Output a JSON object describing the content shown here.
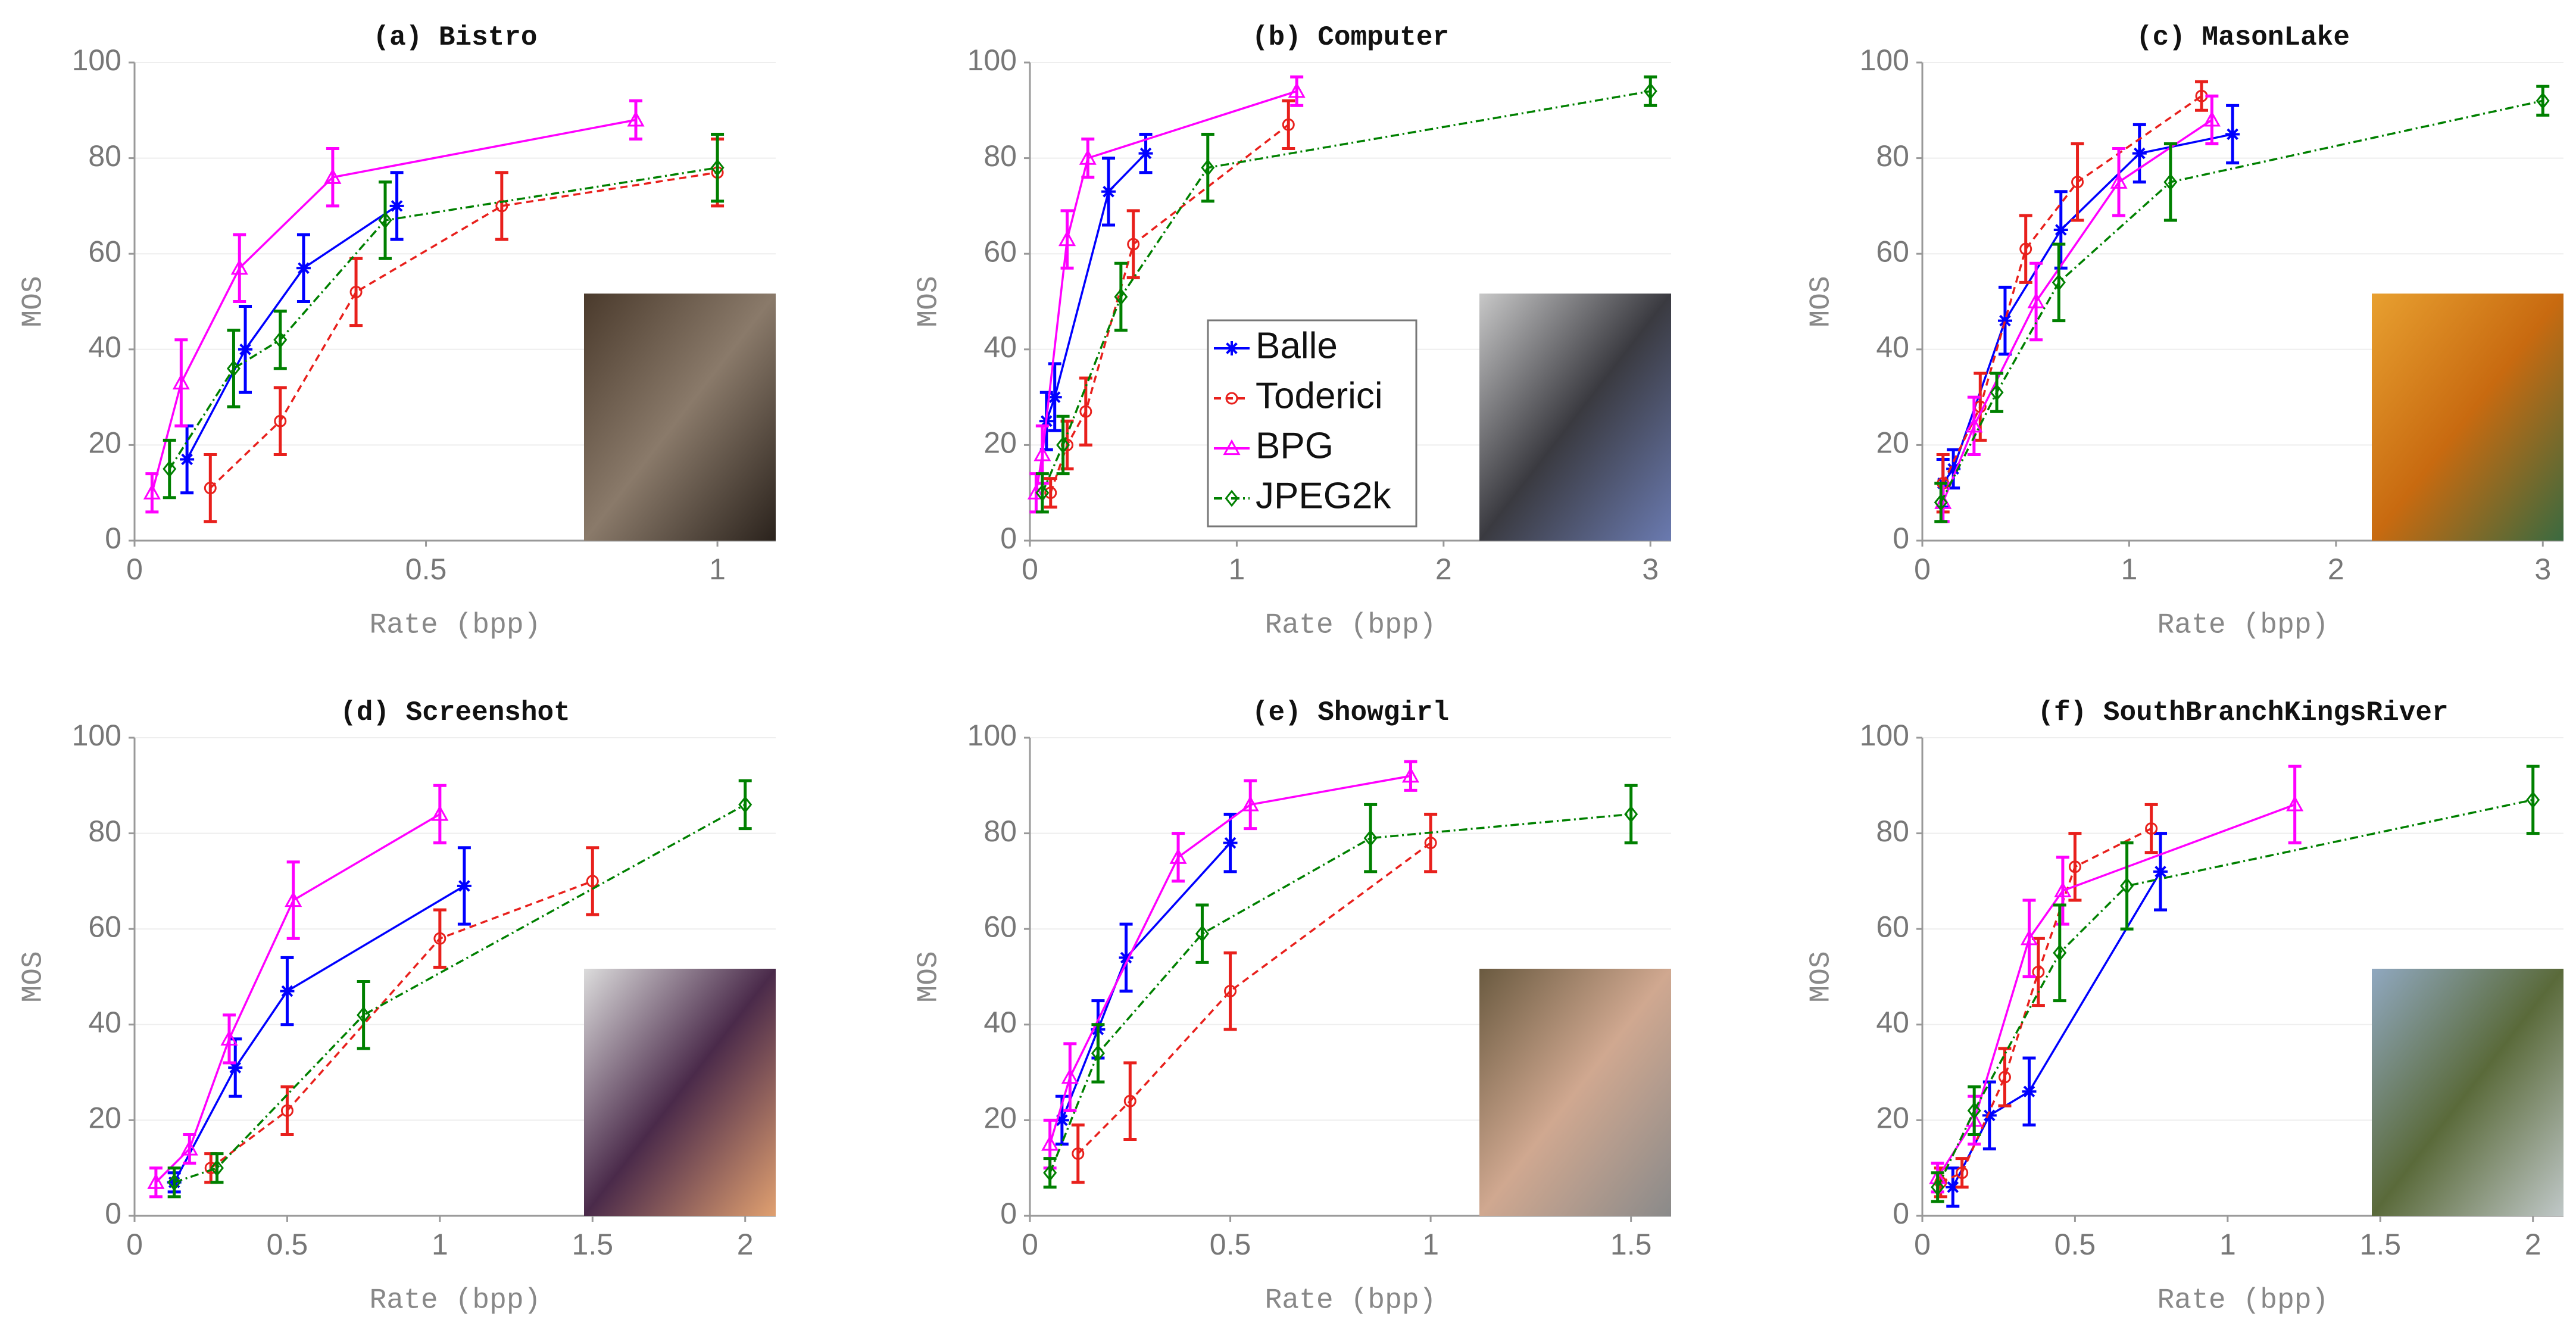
{
  "chart_data": [
    {
      "type": "line",
      "title": "(a) Bistro",
      "xlabel": "Rate (bpp)",
      "ylabel": "MOS",
      "xlim": [
        0,
        1.1
      ],
      "xticks": [
        0,
        0.5,
        1
      ],
      "ylim": [
        0,
        100
      ],
      "yticks": [
        0,
        20,
        40,
        60,
        80,
        100
      ],
      "grid": true,
      "series": [
        {
          "name": "Balle",
          "color": "#0000ff",
          "marker": "asterisk",
          "dash": "solid",
          "x": [
            0.09,
            0.19,
            0.29,
            0.45
          ],
          "values": [
            17,
            40,
            57,
            70
          ],
          "errors": [
            7,
            9,
            7,
            7
          ]
        },
        {
          "name": "Toderici",
          "color": "#e8201c",
          "marker": "circle",
          "dash": "dashed",
          "x": [
            0.13,
            0.25,
            0.38,
            0.63,
            1.0
          ],
          "values": [
            11,
            25,
            52,
            70,
            77
          ],
          "errors": [
            7,
            7,
            7,
            7,
            7
          ]
        },
        {
          "name": "BPG",
          "color": "#ff00ff",
          "marker": "triangle",
          "dash": "solid",
          "x": [
            0.03,
            0.08,
            0.18,
            0.34,
            0.86
          ],
          "values": [
            10,
            33,
            57,
            76,
            88
          ],
          "errors": [
            4,
            9,
            7,
            6,
            4
          ]
        },
        {
          "name": "JPEG2k",
          "color": "#008000",
          "marker": "diamond",
          "dash": "dashdot",
          "x": [
            0.06,
            0.17,
            0.25,
            0.43,
            1.0
          ],
          "values": [
            15,
            36,
            42,
            67,
            78
          ],
          "errors": [
            6,
            8,
            6,
            8,
            7
          ]
        }
      ]
    },
    {
      "type": "line",
      "title": "(b) Computer",
      "xlabel": "Rate (bpp)",
      "ylabel": "MOS",
      "xlim": [
        0,
        3.1
      ],
      "xticks": [
        0,
        1,
        2,
        3
      ],
      "ylim": [
        0,
        100
      ],
      "yticks": [
        0,
        20,
        40,
        60,
        80,
        100
      ],
      "grid": true,
      "legend": "center",
      "series": [
        {
          "name": "Balle",
          "color": "#0000ff",
          "marker": "asterisk",
          "dash": "solid",
          "x": [
            0.08,
            0.12,
            0.38,
            0.56
          ],
          "values": [
            25,
            30,
            73,
            81
          ],
          "errors": [
            6,
            7,
            7,
            4
          ]
        },
        {
          "name": "Toderici",
          "color": "#e8201c",
          "marker": "circle",
          "dash": "dashed",
          "x": [
            0.1,
            0.18,
            0.27,
            0.5,
            1.25
          ],
          "values": [
            10,
            20,
            27,
            62,
            87
          ],
          "errors": [
            3,
            5,
            7,
            7,
            5
          ]
        },
        {
          "name": "BPG",
          "color": "#ff00ff",
          "marker": "triangle",
          "dash": "solid",
          "x": [
            0.03,
            0.06,
            0.18,
            0.28,
            1.29
          ],
          "values": [
            10,
            18,
            63,
            80,
            94
          ],
          "errors": [
            4,
            6,
            6,
            4,
            3
          ]
        },
        {
          "name": "JPEG2k",
          "color": "#008000",
          "marker": "diamond",
          "dash": "dashdot",
          "x": [
            0.06,
            0.16,
            0.44,
            0.86,
            3.0
          ],
          "values": [
            10,
            20,
            51,
            78,
            94
          ],
          "errors": [
            4,
            6,
            7,
            7,
            3
          ]
        }
      ]
    },
    {
      "type": "line",
      "title": "(c) MasonLake",
      "xlabel": "Rate (bpp)",
      "ylabel": "MOS",
      "xlim": [
        0,
        3.1
      ],
      "xticks": [
        0,
        1,
        2,
        3
      ],
      "ylim": [
        0,
        100
      ],
      "yticks": [
        0,
        20,
        40,
        60,
        80,
        100
      ],
      "grid": true,
      "series": [
        {
          "name": "Balle",
          "color": "#0000ff",
          "marker": "asterisk",
          "dash": "solid",
          "x": [
            0.1,
            0.15,
            0.4,
            0.67,
            1.05,
            1.5
          ],
          "values": [
            12,
            15,
            46,
            65,
            81,
            85
          ],
          "errors": [
            5,
            4,
            7,
            8,
            6,
            6
          ]
        },
        {
          "name": "Toderici",
          "color": "#e8201c",
          "marker": "circle",
          "dash": "dashed",
          "x": [
            0.1,
            0.28,
            0.5,
            0.75,
            1.35
          ],
          "values": [
            12,
            28,
            61,
            75,
            93
          ],
          "errors": [
            6,
            7,
            7,
            8,
            3
          ]
        },
        {
          "name": "BPG",
          "color": "#ff00ff",
          "marker": "triangle",
          "dash": "solid",
          "x": [
            0.1,
            0.25,
            0.55,
            0.95,
            1.4
          ],
          "values": [
            8,
            24,
            50,
            75,
            88
          ],
          "errors": [
            4,
            6,
            8,
            7,
            5
          ]
        },
        {
          "name": "JPEG2k",
          "color": "#008000",
          "marker": "diamond",
          "dash": "dashdot",
          "x": [
            0.09,
            0.36,
            0.66,
            1.2,
            3.0
          ],
          "values": [
            8,
            31,
            54,
            75,
            92
          ],
          "errors": [
            4,
            4,
            8,
            8,
            3
          ]
        }
      ]
    },
    {
      "type": "line",
      "title": "(d) Screenshot",
      "xlabel": "Rate (bpp)",
      "ylabel": "MOS",
      "xlim": [
        0,
        2.1
      ],
      "xticks": [
        0,
        0.5,
        1,
        1.5,
        2
      ],
      "ylim": [
        0,
        100
      ],
      "yticks": [
        0,
        20,
        40,
        60,
        80,
        100
      ],
      "grid": true,
      "series": [
        {
          "name": "Balle",
          "color": "#0000ff",
          "marker": "asterisk",
          "dash": "solid",
          "x": [
            0.13,
            0.33,
            0.5,
            1.08
          ],
          "values": [
            7,
            31,
            47,
            69
          ],
          "errors": [
            2,
            6,
            7,
            8
          ]
        },
        {
          "name": "Toderici",
          "color": "#e8201c",
          "marker": "circle",
          "dash": "dashed",
          "x": [
            0.25,
            0.5,
            1.0,
            1.5
          ],
          "values": [
            10,
            22,
            58,
            70
          ],
          "errors": [
            3,
            5,
            6,
            7
          ]
        },
        {
          "name": "BPG",
          "color": "#ff00ff",
          "marker": "triangle",
          "dash": "solid",
          "x": [
            0.07,
            0.18,
            0.31,
            0.52,
            1.0
          ],
          "values": [
            7,
            14,
            37,
            66,
            84
          ],
          "errors": [
            3,
            3,
            5,
            8,
            6
          ]
        },
        {
          "name": "JPEG2k",
          "color": "#008000",
          "marker": "diamond",
          "dash": "dashdot",
          "x": [
            0.13,
            0.27,
            0.75,
            2.0
          ],
          "values": [
            7,
            10,
            42,
            86
          ],
          "errors": [
            3,
            3,
            7,
            5
          ]
        }
      ]
    },
    {
      "type": "line",
      "title": "(e) Showgirl",
      "xlabel": "Rate (bpp)",
      "ylabel": "MOS",
      "xlim": [
        0,
        1.6
      ],
      "xticks": [
        0,
        0.5,
        1,
        1.5
      ],
      "ylim": [
        0,
        100
      ],
      "yticks": [
        0,
        20,
        40,
        60,
        80,
        100
      ],
      "grid": true,
      "series": [
        {
          "name": "Balle",
          "color": "#0000ff",
          "marker": "asterisk",
          "dash": "solid",
          "x": [
            0.08,
            0.17,
            0.24,
            0.5
          ],
          "values": [
            20,
            39,
            54,
            78
          ],
          "errors": [
            5,
            6,
            7,
            6
          ]
        },
        {
          "name": "Toderici",
          "color": "#e8201c",
          "marker": "circle",
          "dash": "dashed",
          "x": [
            0.12,
            0.25,
            0.5,
            1.0
          ],
          "values": [
            13,
            24,
            47,
            78
          ],
          "errors": [
            6,
            8,
            8,
            6
          ]
        },
        {
          "name": "BPG",
          "color": "#ff00ff",
          "marker": "triangle",
          "dash": "solid",
          "x": [
            0.05,
            0.1,
            0.37,
            0.55,
            0.95
          ],
          "values": [
            15,
            29,
            75,
            86,
            92
          ],
          "errors": [
            5,
            7,
            5,
            5,
            3
          ]
        },
        {
          "name": "JPEG2k",
          "color": "#008000",
          "marker": "diamond",
          "dash": "dashdot",
          "x": [
            0.05,
            0.17,
            0.43,
            0.85,
            1.5
          ],
          "values": [
            9,
            34,
            59,
            79,
            84
          ],
          "errors": [
            3,
            6,
            6,
            7,
            6
          ]
        }
      ]
    },
    {
      "type": "line",
      "title": "(f) SouthBranchKingsRiver",
      "xlabel": "Rate (bpp)",
      "ylabel": "MOS",
      "xlim": [
        0,
        2.1
      ],
      "xticks": [
        0,
        0.5,
        1,
        1.5,
        2
      ],
      "ylim": [
        0,
        100
      ],
      "yticks": [
        0,
        20,
        40,
        60,
        80,
        100
      ],
      "grid": true,
      "series": [
        {
          "name": "Balle",
          "color": "#0000ff",
          "marker": "asterisk",
          "dash": "solid",
          "x": [
            0.1,
            0.22,
            0.35,
            0.78
          ],
          "values": [
            6,
            21,
            26,
            72
          ],
          "errors": [
            4,
            7,
            7,
            8
          ]
        },
        {
          "name": "Toderici",
          "color": "#e8201c",
          "marker": "circle",
          "dash": "dashed",
          "x": [
            0.06,
            0.13,
            0.27,
            0.38,
            0.5,
            0.75
          ],
          "values": [
            7,
            9,
            29,
            51,
            73,
            81
          ],
          "errors": [
            3,
            3,
            6,
            7,
            7,
            5
          ]
        },
        {
          "name": "BPG",
          "color": "#ff00ff",
          "marker": "triangle",
          "dash": "solid",
          "x": [
            0.05,
            0.17,
            0.35,
            0.46,
            1.22
          ],
          "values": [
            8,
            20,
            58,
            68,
            86
          ],
          "errors": [
            3,
            5,
            8,
            7,
            8
          ]
        },
        {
          "name": "JPEG2k",
          "color": "#008000",
          "marker": "diamond",
          "dash": "dashdot",
          "x": [
            0.05,
            0.17,
            0.45,
            0.67,
            2.0
          ],
          "values": [
            6,
            22,
            55,
            69,
            87
          ],
          "errors": [
            3,
            5,
            10,
            9,
            7
          ]
        }
      ]
    }
  ]
}
